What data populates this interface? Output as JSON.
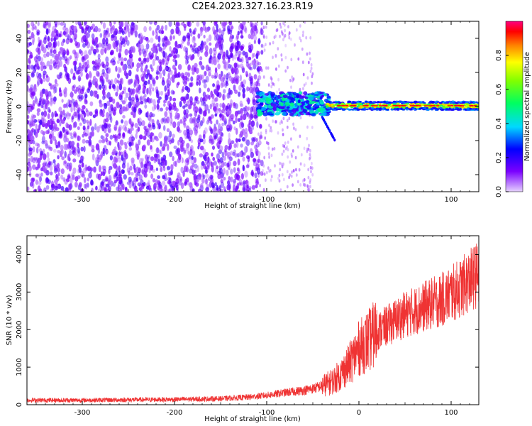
{
  "title": "C2E4.2023.327.16.23.R19",
  "chart_data": [
    {
      "type": "heatmap",
      "xlabel": "Height of straight line (km)",
      "ylabel": "Frequency (Hz)",
      "xlim": [
        -360,
        130
      ],
      "ylim": [
        -50,
        50
      ],
      "x_ticks": [
        -300,
        -200,
        -100,
        0,
        100
      ],
      "y_ticks": [
        -40,
        -20,
        0,
        20,
        40
      ],
      "grid": false,
      "regions": [
        {
          "x": [
            -360,
            -110
          ],
          "y": [
            -50,
            50
          ],
          "level": 0.1
        },
        {
          "x": [
            -110,
            -55
          ],
          "y": [
            -50,
            50
          ],
          "level": 0.03
        },
        {
          "x": [
            -110,
            -35
          ],
          "y": [
            -5,
            8
          ],
          "level": 0.3
        },
        {
          "x": [
            -35,
            130
          ],
          "y": [
            -2,
            3
          ],
          "level": 0.45
        }
      ],
      "colorbar": {
        "label": "Normalized spectral amplitude",
        "range": [
          0.0,
          1.0
        ],
        "ticks": [
          0.0,
          0.2,
          0.4,
          0.6,
          0.8
        ]
      }
    },
    {
      "type": "line",
      "xlabel": "Height of straight line (km)",
      "ylabel": "SNR (10 * v/v)",
      "xlim": [
        -360,
        130
      ],
      "ylim": [
        0,
        4500
      ],
      "x_ticks": [
        -300,
        -200,
        -100,
        0,
        100
      ],
      "y_ticks": [
        0,
        1000,
        2000,
        3000,
        4000
      ],
      "grid": false,
      "series": [
        {
          "color": "#ef3333",
          "x": [
            -360,
            -300,
            -250,
            -200,
            -150,
            -120,
            -100,
            -80,
            -60,
            -50,
            -40,
            -30,
            -20,
            -10,
            0,
            10,
            20,
            30,
            40,
            50,
            60,
            70,
            80,
            90,
            100,
            110,
            120,
            130
          ],
          "y": [
            120,
            120,
            130,
            140,
            160,
            200,
            250,
            320,
            380,
            430,
            500,
            600,
            800,
            1100,
            1500,
            1700,
            1950,
            2100,
            2250,
            2400,
            2500,
            2600,
            2700,
            2800,
            2950,
            3100,
            3300,
            3500
          ]
        }
      ]
    }
  ]
}
